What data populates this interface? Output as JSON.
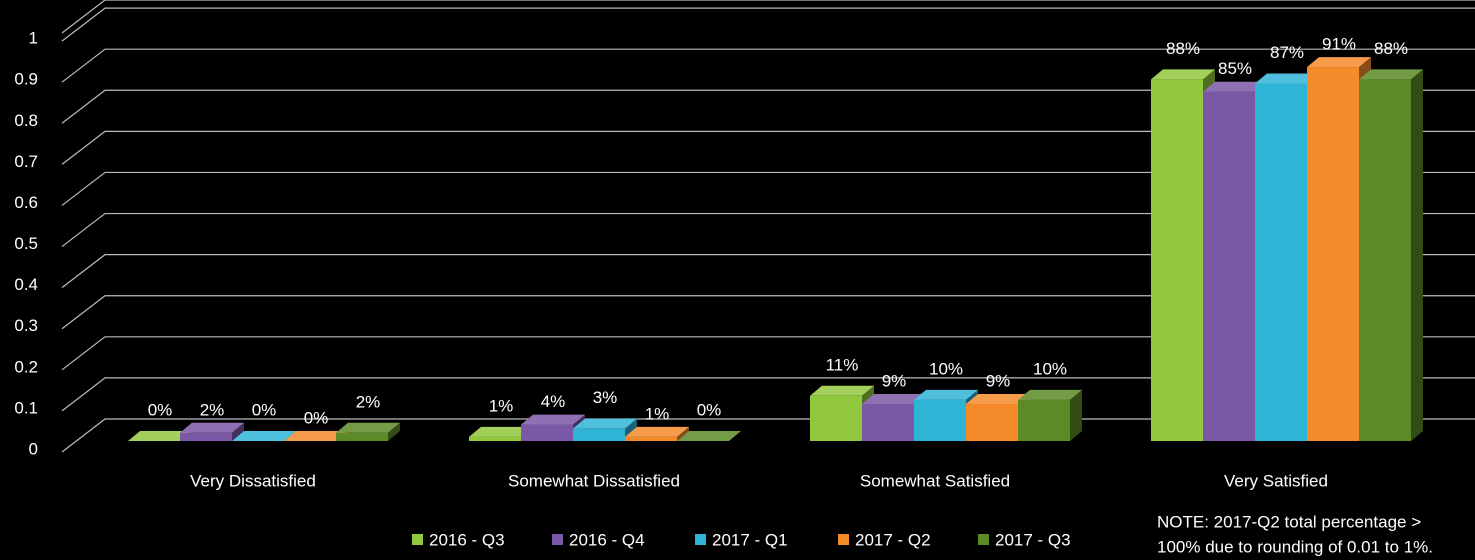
{
  "chart_data": {
    "type": "bar3d",
    "categories": [
      "Very Dissatisfied",
      "Somewhat Dissatisfied",
      "Somewhat Satisfied",
      "Very Satisfied"
    ],
    "series": [
      {
        "name": "2016 - Q3",
        "color": "#92c83e",
        "values": [
          0,
          0.01,
          0.11,
          0.88
        ],
        "value_labels": [
          "0%",
          "1%",
          "11%",
          "88%"
        ]
      },
      {
        "name": "2016 - Q4",
        "color": "#7b58a6",
        "values": [
          0.02,
          0.04,
          0.09,
          0.85
        ],
        "value_labels": [
          "2%",
          "4%",
          "9%",
          "85%"
        ]
      },
      {
        "name": "2017 - Q1",
        "color": "#2fb4d6",
        "values": [
          0,
          0.03,
          0.1,
          0.87
        ],
        "value_labels": [
          "0%",
          "3%",
          "10%",
          "87%"
        ]
      },
      {
        "name": "2017 - Q2",
        "color": "#f58a2a",
        "values": [
          0,
          0.01,
          0.09,
          0.91
        ],
        "value_labels": [
          "0%",
          "1%",
          "9%",
          "91%"
        ]
      },
      {
        "name": "2017 - Q3",
        "color": "#5c8a27",
        "values": [
          0.02,
          0,
          0.1,
          0.88
        ],
        "value_labels": [
          "2%",
          "0%",
          "10%",
          "88%"
        ]
      }
    ],
    "ylim": [
      0,
      1.1
    ],
    "yticks": [
      0,
      0.1,
      0.2,
      0.3,
      0.4,
      0.5,
      0.6,
      0.7,
      0.8,
      0.9,
      1
    ],
    "grid": true,
    "legend": "bottom",
    "note": [
      "NOTE: 2017-Q2 total percentage >",
      "100% due to rounding of 0.01 to 1%."
    ]
  }
}
